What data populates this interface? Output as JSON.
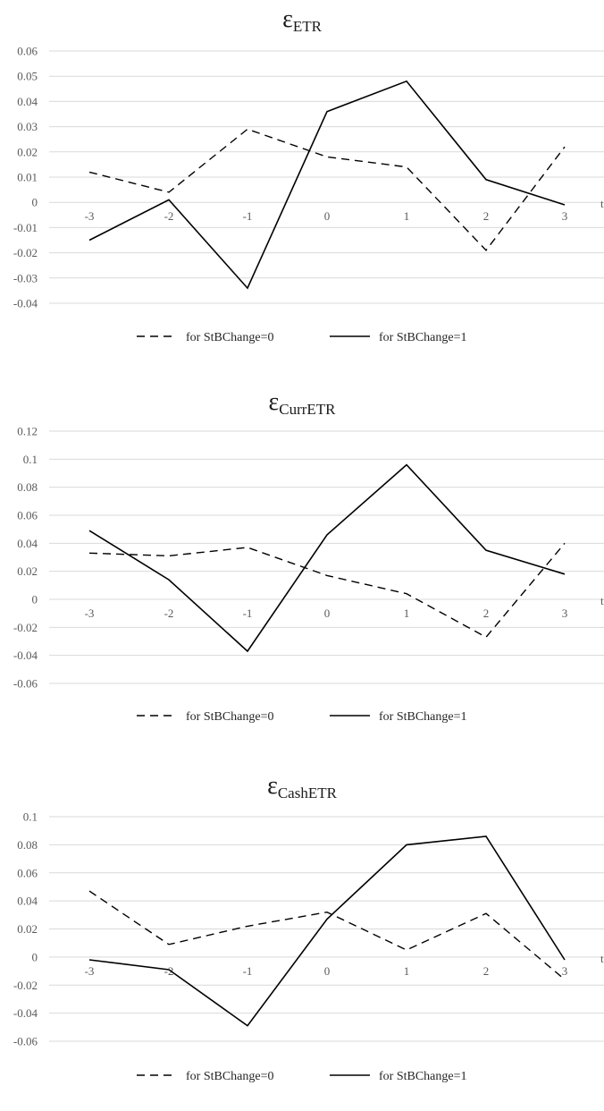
{
  "chart_data": [
    {
      "type": "line",
      "title": "ε",
      "title_sub": "ETR",
      "x": [
        -3,
        -2,
        -1,
        0,
        1,
        2,
        3
      ],
      "x_tick_labels": [
        "-3",
        "-2",
        "-1",
        "0",
        "1",
        "2",
        "3"
      ],
      "x_axis_letter": "t",
      "ylim": [
        -0.04,
        0.06
      ],
      "y_ticks": [
        0.06,
        0.05,
        0.04,
        0.03,
        0.02,
        0.01,
        0,
        -0.01,
        -0.02,
        -0.03,
        -0.04
      ],
      "y_tick_labels": [
        "0.06",
        "0.05",
        "0.04",
        "0.03",
        "0.02",
        "0.01",
        "0",
        "-0.01",
        "-0.02",
        "-0.03",
        "-0.04"
      ],
      "grid": true,
      "legend_position": "bottom",
      "series": [
        {
          "name": "for StBChange=0",
          "style": "dashed",
          "values": [
            0.012,
            0.004,
            0.029,
            0.018,
            0.014,
            -0.019,
            0.022
          ]
        },
        {
          "name": "for StBChange=1",
          "style": "solid",
          "values": [
            -0.015,
            0.001,
            -0.034,
            0.036,
            0.048,
            0.009,
            -0.001
          ]
        }
      ]
    },
    {
      "type": "line",
      "title": "ε",
      "title_sub": "CurrETR",
      "x": [
        -3,
        -2,
        -1,
        0,
        1,
        2,
        3
      ],
      "x_tick_labels": [
        "-3",
        "-2",
        "-1",
        "0",
        "1",
        "2",
        "3"
      ],
      "x_axis_letter": "t",
      "ylim": [
        -0.06,
        0.12
      ],
      "y_ticks": [
        0.12,
        0.1,
        0.08,
        0.06,
        0.04,
        0.02,
        0,
        -0.02,
        -0.04,
        -0.06
      ],
      "y_tick_labels": [
        "0.12",
        "0.1",
        "0.08",
        "0.06",
        "0.04",
        "0.02",
        "0",
        "-0.02",
        "-0.04",
        "-0.06"
      ],
      "grid": true,
      "legend_position": "bottom",
      "series": [
        {
          "name": "for StBChange=0",
          "style": "dashed",
          "values": [
            0.033,
            0.031,
            0.037,
            0.017,
            0.004,
            -0.027,
            0.04
          ]
        },
        {
          "name": "for StBChange=1",
          "style": "solid",
          "values": [
            0.049,
            0.014,
            -0.037,
            0.046,
            0.096,
            0.035,
            0.018
          ]
        }
      ]
    },
    {
      "type": "line",
      "title": "ε",
      "title_sub": "CashETR",
      "x": [
        -3,
        -2,
        -1,
        0,
        1,
        2,
        3
      ],
      "x_tick_labels": [
        "-3",
        "-2",
        "-1",
        "0",
        "1",
        "2",
        "3"
      ],
      "x_axis_letter": "t",
      "ylim": [
        -0.06,
        0.1
      ],
      "y_ticks": [
        0.1,
        0.08,
        0.06,
        0.04,
        0.02,
        0,
        -0.02,
        -0.04,
        -0.06
      ],
      "y_tick_labels": [
        "0.1",
        "0.08",
        "0.06",
        "0.04",
        "0.02",
        "0",
        "-0.02",
        "-0.04",
        "-0.06"
      ],
      "grid": true,
      "legend_position": "bottom",
      "series": [
        {
          "name": "for StBChange=0",
          "style": "dashed",
          "values": [
            0.047,
            0.009,
            0.022,
            0.032,
            0.005,
            0.031,
            -0.016
          ]
        },
        {
          "name": "for StBChange=1",
          "style": "solid",
          "values": [
            -0.002,
            -0.009,
            -0.049,
            0.027,
            0.08,
            0.086,
            -0.002
          ]
        }
      ]
    }
  ]
}
